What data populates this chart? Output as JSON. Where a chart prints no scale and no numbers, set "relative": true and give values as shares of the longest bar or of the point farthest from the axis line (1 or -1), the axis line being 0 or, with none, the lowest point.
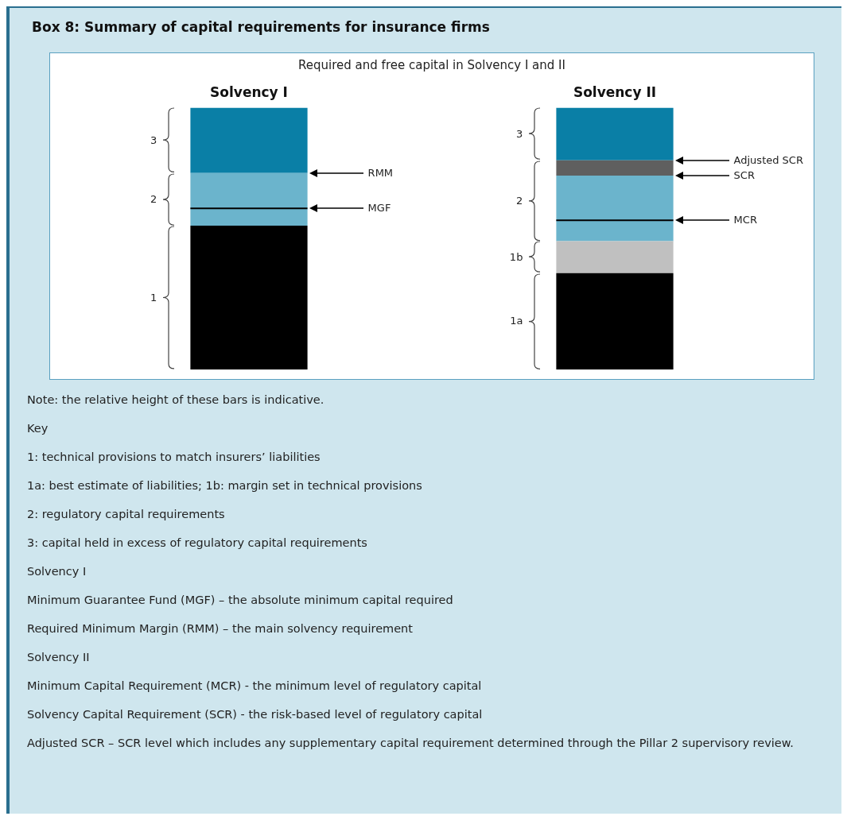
{
  "chart_data": {
    "type": "bar",
    "title": "Box 8: Summary of capital requirements for insurance firms",
    "subtitle": "Required and free capital in Solvency I and II",
    "categories": [
      "Solvency I",
      "Solvency II"
    ],
    "stacked": true,
    "relative": true,
    "legend": false,
    "grid": false,
    "series": [
      {
        "color": "#000000",
        "values": [
          0.549,
          0.368
        ]
      },
      {
        "color": "#c0c0c0",
        "values": [
          0,
          0.122
        ]
      },
      {
        "color": "#6bb4cc",
        "values": [
          0.066,
          0.08
        ]
      },
      {
        "color": "#6bb4cc",
        "values": [
          0.135,
          0.17
        ]
      },
      {
        "color": "#5f5f5f",
        "values": [
          0,
          0.059
        ]
      },
      {
        "color": "#0a7fa6",
        "values": [
          0.25,
          0.201
        ]
      }
    ],
    "annotations": [
      "Note: the relative height of these bars is indicative.",
      "Key",
      "1: technical provisions to match insurers’ liabilities",
      "1a: best estimate of liabilities; 1b: margin set in technical provisions",
      "2: regulatory capital requirements",
      "3: capital held in excess of regulatory capital requirements",
      "Solvency I",
      "Minimum Guarantee Fund (MGF) – the absolute minimum capital required",
      "Required Minimum Margin (RMM) – the main solvency requirement",
      "Solvency II",
      "Minimum Capital Requirement (MCR) - the minimum level of regulatory capital",
      "Solvency Capital Requirement (SCR) - the risk-based level of regulatory capital",
      "Adjusted SCR – SCR level which includes any supplementary capital requirement determined through the Pillar 2 supervisory review.",
      "3",
      "2",
      "1",
      "RMM",
      "MGF",
      "3",
      "2",
      "1b",
      "1a",
      "Adjusted SCR",
      "SCR",
      "MCR"
    ]
  }
}
